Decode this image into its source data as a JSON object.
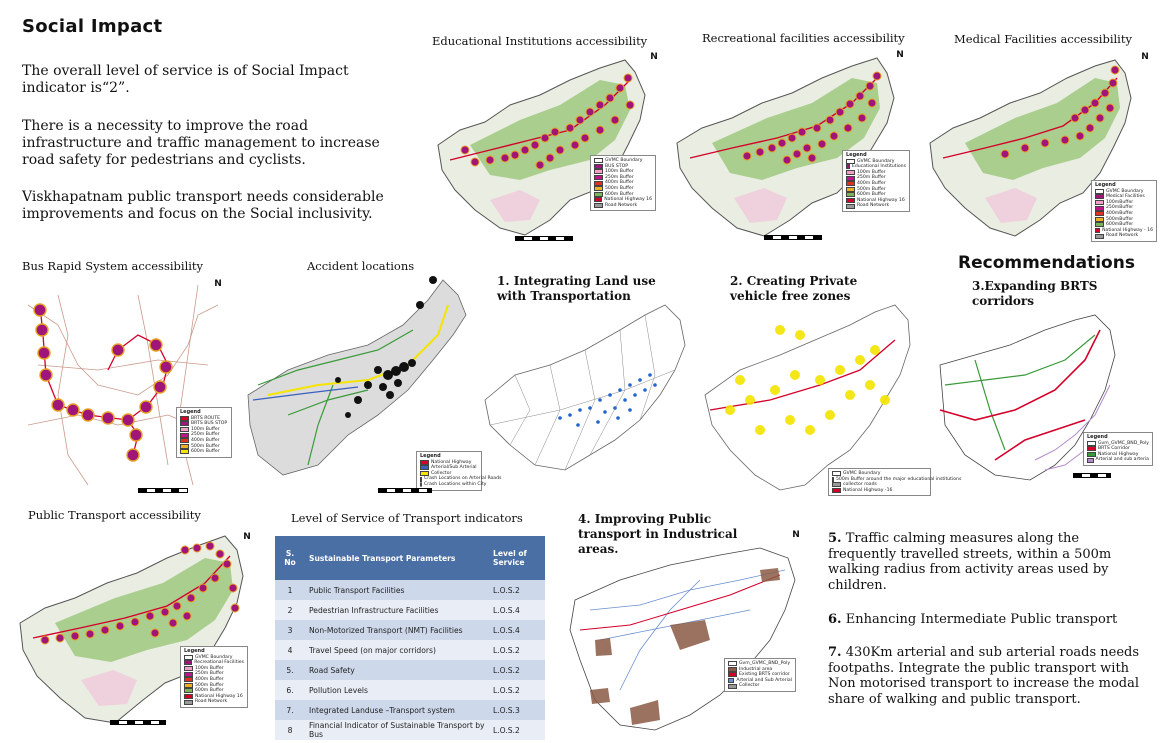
{
  "page": {
    "title": "Social Impact",
    "paragraphs": [
      "The overall level of service is  of Social Impact indicator is“2”.",
      "There is a necessity to improve the road infrastructure and traffic management to increase road safety for pedestrians and cyclists.",
      "Viskhapatnam public transport needs considerable improvements and focus on the Social inclusivity."
    ]
  },
  "maps": {
    "education": {
      "caption": "Educational Institutions accessibility",
      "legend": {
        "title": "Legend",
        "items": [
          "GVMC Boundary",
          "BUS STOP",
          "100m Buffer",
          "250m Buffer",
          "400m Buffer",
          "500m Buffer",
          "600m Buffer",
          "National Highway 16",
          "Road Network"
        ]
      }
    },
    "recreation": {
      "caption": "Recreational facilities accessibility",
      "legend": {
        "title": "Legend",
        "items": [
          "GVMC Boundary",
          "Educational Institutions",
          "100m Buffer",
          "250m Buffer",
          "400m Buffer",
          "500m Buffer",
          "600m Buffer",
          "National Highway 16",
          "Road Network"
        ]
      }
    },
    "medical": {
      "caption": "Medical Facilities accessibility",
      "legend": {
        "title": "Legend",
        "items": [
          "GVMC Boundary",
          "Medical Facilities",
          "100mBuffer",
          "250mBuffer",
          "400mBuffer",
          "500mBuffer",
          "600mBuffer",
          "National Highway - 16",
          "Road Network"
        ]
      }
    },
    "brts": {
      "caption": "Bus Rapid System accessibility",
      "legend": {
        "title": "Legend",
        "items": [
          "BRTS ROUTE",
          "BRTS BUS STOP",
          "100m Buffer",
          "250m Buffer",
          "400m Buffer",
          "500m Buffer",
          "600m Buffer"
        ]
      }
    },
    "accident": {
      "caption": "Accident locations",
      "legend": {
        "title": "Legend",
        "items": [
          "National Highway",
          "Arterial/Sub Arterial",
          "Collector",
          "Crash Locations on Arterial Roads",
          "Crash Locations within City"
        ]
      }
    },
    "public_transport": {
      "caption": "Public Transport accessibility",
      "legend": {
        "title": "Legend",
        "items": [
          "GVMC Boundary",
          "Recreational Facilities",
          "100m Buffer",
          "250m Buffer",
          "400m Buffer",
          "500m Buffer",
          "600m Buffer",
          "National Highway 16",
          "Road Network"
        ]
      }
    },
    "landuse": {
      "caption": "1. Integrating Land use with Transportation"
    },
    "private": {
      "caption": "2. Creating Private vehicle free zones",
      "legend": {
        "items": [
          "GVMC Boundary",
          "500m Buffer around the major educational institutions",
          "collector roads",
          "National Highway -16"
        ]
      }
    },
    "brts_expand": {
      "caption": "3.Expanding BRTS corridors",
      "legend": {
        "title": "Legend",
        "items": [
          "Gvm_GVMC_BND_Poly",
          "BRTS Corridor",
          "National Highway",
          "Arterial and sub arteria"
        ]
      }
    },
    "industrial": {
      "caption": "4. Improving Public transport in Industrical areas.",
      "legend": {
        "items": [
          "Gvm_GVMC_BND_Poly",
          "Industrial area",
          "Existing BRTS corridor",
          "Arterial and Sub Arterial",
          "Collector"
        ]
      }
    }
  },
  "north_label": "N",
  "recommendations": {
    "heading": "Recommendations",
    "items": [
      {
        "num": "5.",
        "text": " Traffic calming measures along the frequently travelled streets, within a 500m walking radius from activity areas used by children."
      },
      {
        "num": "6.",
        "text": " Enhancing Intermediate Public transport"
      },
      {
        "num": "7.",
        "text": " 430Km arterial and sub arterial roads needs footpaths. Integrate the public transport with Non motorised transport to increase the modal share of walking and public transport."
      }
    ]
  },
  "los_table": {
    "title": "Level of Service of Transport indicators",
    "headers": [
      "S. No",
      "Sustainable Transport Parameters",
      "Level of Service"
    ],
    "rows": [
      [
        "1",
        "Public Transport Facilities",
        "L.O.S.2"
      ],
      [
        "2",
        "Pedestrian Infrastructure Facilities",
        "L.O.S.4"
      ],
      [
        "3",
        "Non-Motorized Transport (NMT) Facilities",
        "L.O.S.4"
      ],
      [
        "4",
        "Travel Speed (on major corridors)",
        "L.O.S.2"
      ],
      [
        "5.",
        "Road Safety",
        "L.O.S.2"
      ],
      [
        "6.",
        "Pollution Levels",
        "L.O.S.2"
      ],
      [
        "7.",
        "Integrated Landuse –Transport system",
        "L.O.S.3"
      ],
      [
        "8",
        "Financial Indicator of Sustainable Transport by Bus",
        "L.O.S.2"
      ]
    ]
  },
  "colors": {
    "table_header": "#4a6fa5",
    "buffer": "#a0157a",
    "highway": "#d4002a",
    "greens": "#7db35a",
    "yellow": "#f4e400"
  }
}
